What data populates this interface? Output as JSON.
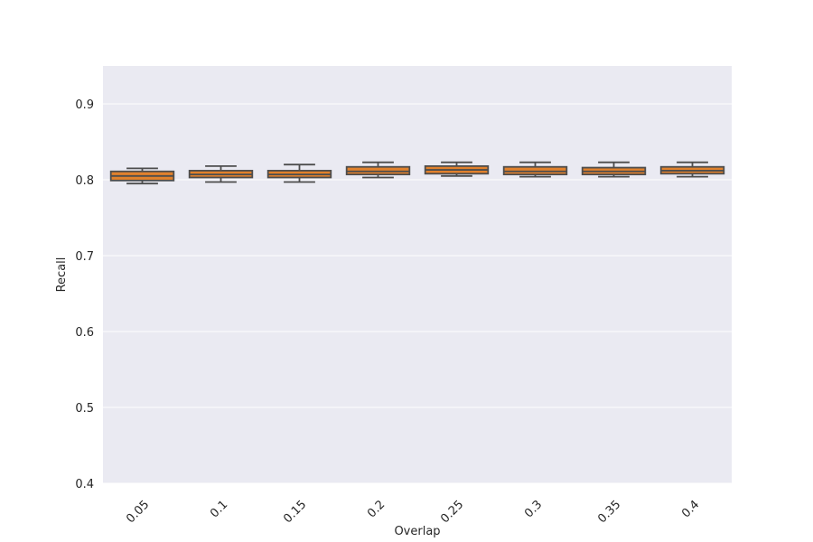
{
  "chart_data": {
    "type": "box",
    "title": "",
    "xlabel": "Overlap",
    "ylabel": "Recall",
    "ylim": [
      0.4,
      0.95
    ],
    "yticks": [
      0.4,
      0.5,
      0.6,
      0.7,
      0.8,
      0.9
    ],
    "ytick_labels": [
      "0.4",
      "0.5",
      "0.6",
      "0.7",
      "0.8",
      "0.9"
    ],
    "categories": [
      "0.05",
      "0.1",
      "0.15",
      "0.2",
      "0.25",
      "0.3",
      "0.35",
      "0.4"
    ],
    "boxes": [
      {
        "min": 0.795,
        "q1": 0.799,
        "median": 0.805,
        "q3": 0.811,
        "max": 0.815
      },
      {
        "min": 0.797,
        "q1": 0.803,
        "median": 0.807,
        "q3": 0.812,
        "max": 0.818
      },
      {
        "min": 0.797,
        "q1": 0.803,
        "median": 0.807,
        "q3": 0.812,
        "max": 0.82
      },
      {
        "min": 0.803,
        "q1": 0.807,
        "median": 0.811,
        "q3": 0.817,
        "max": 0.823
      },
      {
        "min": 0.805,
        "q1": 0.808,
        "median": 0.813,
        "q3": 0.818,
        "max": 0.823
      },
      {
        "min": 0.804,
        "q1": 0.807,
        "median": 0.811,
        "q3": 0.817,
        "max": 0.823
      },
      {
        "min": 0.804,
        "q1": 0.807,
        "median": 0.811,
        "q3": 0.816,
        "max": 0.823
      },
      {
        "min": 0.804,
        "q1": 0.808,
        "median": 0.812,
        "q3": 0.817,
        "max": 0.823
      }
    ],
    "grid": true,
    "colors": {
      "box_fill": "#e1812c",
      "line": "#4d4d4d",
      "background": "#eaeaf2",
      "grid": "#ffffff"
    }
  }
}
